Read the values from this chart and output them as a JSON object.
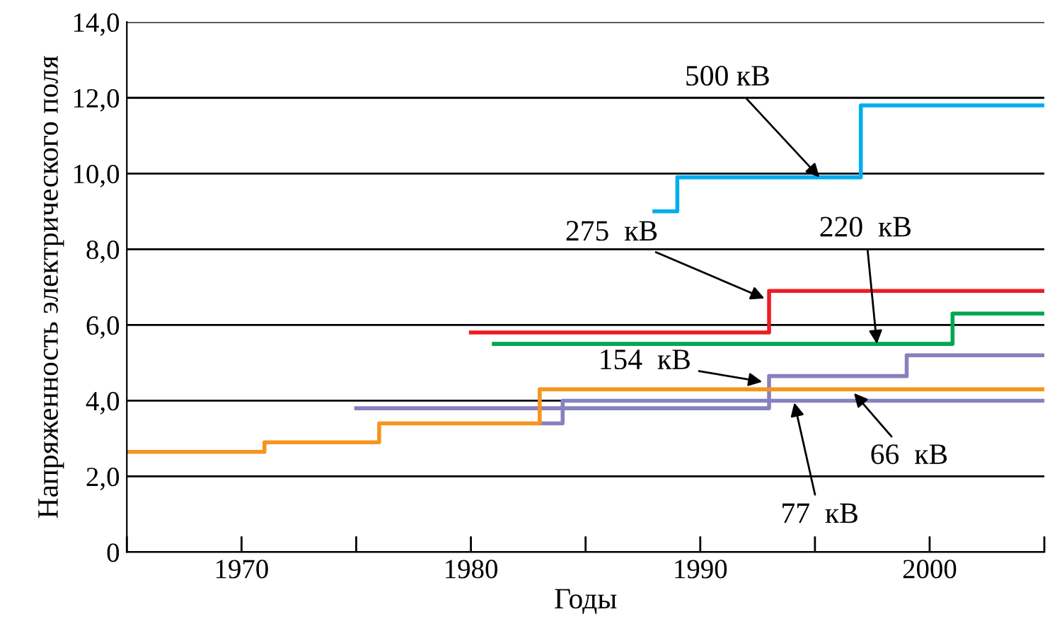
{
  "chart_data": {
    "type": "step",
    "xlabel": "Годы",
    "ylabel": "Напряженность электрического поля",
    "xlim": [
      1965,
      2005
    ],
    "ylim": [
      0,
      14
    ],
    "xticks": [
      {
        "value": 1965,
        "label": null
      },
      {
        "value": 1970,
        "label": "1970"
      },
      {
        "value": 1975,
        "label": null
      },
      {
        "value": 1980,
        "label": "1980"
      },
      {
        "value": 1985,
        "label": null
      },
      {
        "value": 1990,
        "label": "1990"
      },
      {
        "value": 1995,
        "label": null
      },
      {
        "value": 2000,
        "label": "2000"
      },
      {
        "value": 2005,
        "label": null
      }
    ],
    "yticks": [
      0,
      {
        "value": 2,
        "label": "2,0"
      },
      {
        "value": 4,
        "label": "4,0"
      },
      {
        "value": 6,
        "label": "6,0"
      },
      {
        "value": 8,
        "label": "8,0"
      },
      {
        "value": 10,
        "label": "10,0"
      },
      {
        "value": 12,
        "label": "12,0"
      },
      {
        "value": 14,
        "label": "14,0"
      }
    ],
    "grid": "y",
    "legend": false,
    "marker": "none",
    "line_style": "solid",
    "series": [
      {
        "color": "#00aeef",
        "x": [
          1988,
          1989,
          1997,
          2005
        ],
        "values": [
          9.0,
          9.9,
          11.8,
          11.8
        ]
      },
      {
        "color": "#ed1c24",
        "x": [
          1980,
          1993,
          2005
        ],
        "values": [
          5.8,
          6.9,
          6.9
        ]
      },
      {
        "color": "#00a651",
        "x": [
          1981,
          2001,
          2005
        ],
        "values": [
          5.5,
          6.3,
          6.3
        ]
      },
      {
        "color": "#8781bd",
        "x": [
          1975,
          1993,
          1999,
          2005
        ],
        "values": [
          3.8,
          4.65,
          5.2,
          5.2
        ]
      },
      {
        "color": "#8781bd",
        "x": [
          1983,
          1984,
          2005
        ],
        "values": [
          3.4,
          4.0,
          4.0
        ]
      },
      {
        "color": "#f7941d",
        "x": [
          1965,
          1971,
          1976,
          1983,
          2005
        ],
        "values": [
          2.65,
          2.9,
          3.4,
          4.3,
          4.3
        ]
      }
    ],
    "annotations": [
      {
        "text": "500 кВ",
        "x": 1995.2,
        "y": 9.9
      },
      {
        "text": "275  кВ",
        "x": 1992.8,
        "y": 6.7
      },
      {
        "text": "220  кВ",
        "x": 1997.7,
        "y": 5.5
      },
      {
        "text": "154  кВ",
        "x": 1992.7,
        "y": 4.5
      },
      {
        "text": "77  кВ",
        "x": 1994.1,
        "y": 3.95
      },
      {
        "text": "66  кВ",
        "x": 1996.7,
        "y": 4.2
      }
    ]
  }
}
